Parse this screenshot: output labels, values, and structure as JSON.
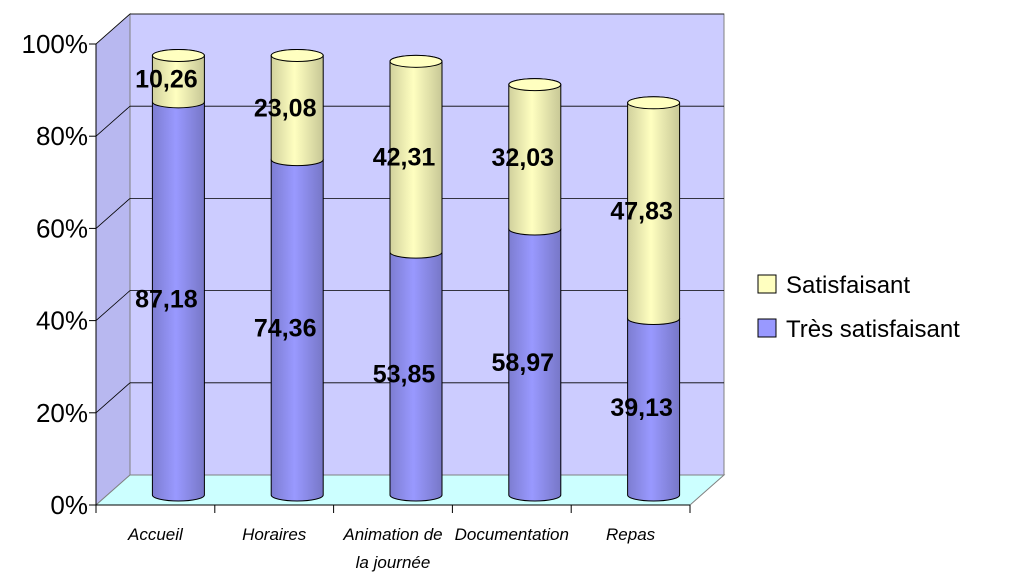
{
  "chart_data": {
    "type": "bar",
    "stacked": "percent",
    "shape": "cylinder",
    "categories": [
      [
        "Accueil"
      ],
      [
        "Horaires"
      ],
      [
        "Animation de",
        "la journée"
      ],
      [
        "Documentation"
      ],
      [
        "Repas"
      ]
    ],
    "series": [
      {
        "name": "Très satisfaisant",
        "values": [
          87.18,
          74.36,
          53.85,
          58.97,
          39.13
        ],
        "labels": [
          "87,18",
          "74,36",
          "53,85",
          "58,97",
          "39,13"
        ],
        "color": "#9999ff"
      },
      {
        "name": "Satisfaisant",
        "values": [
          10.26,
          23.08,
          42.31,
          32.03,
          47.83
        ],
        "labels": [
          "10,26",
          "23,08",
          "42,31",
          "32,03",
          "47,83"
        ],
        "color": "#ffffc0"
      }
    ],
    "y_ticks": [
      "0%",
      "20%",
      "40%",
      "60%",
      "80%",
      "100%"
    ],
    "ylim": [
      0,
      100
    ],
    "grid": true,
    "legend": [
      "Satisfaisant",
      "Très satisfaisant"
    ],
    "legend_position": "right",
    "wall_color": "#ccccff",
    "floor_color": "#ccffff"
  }
}
